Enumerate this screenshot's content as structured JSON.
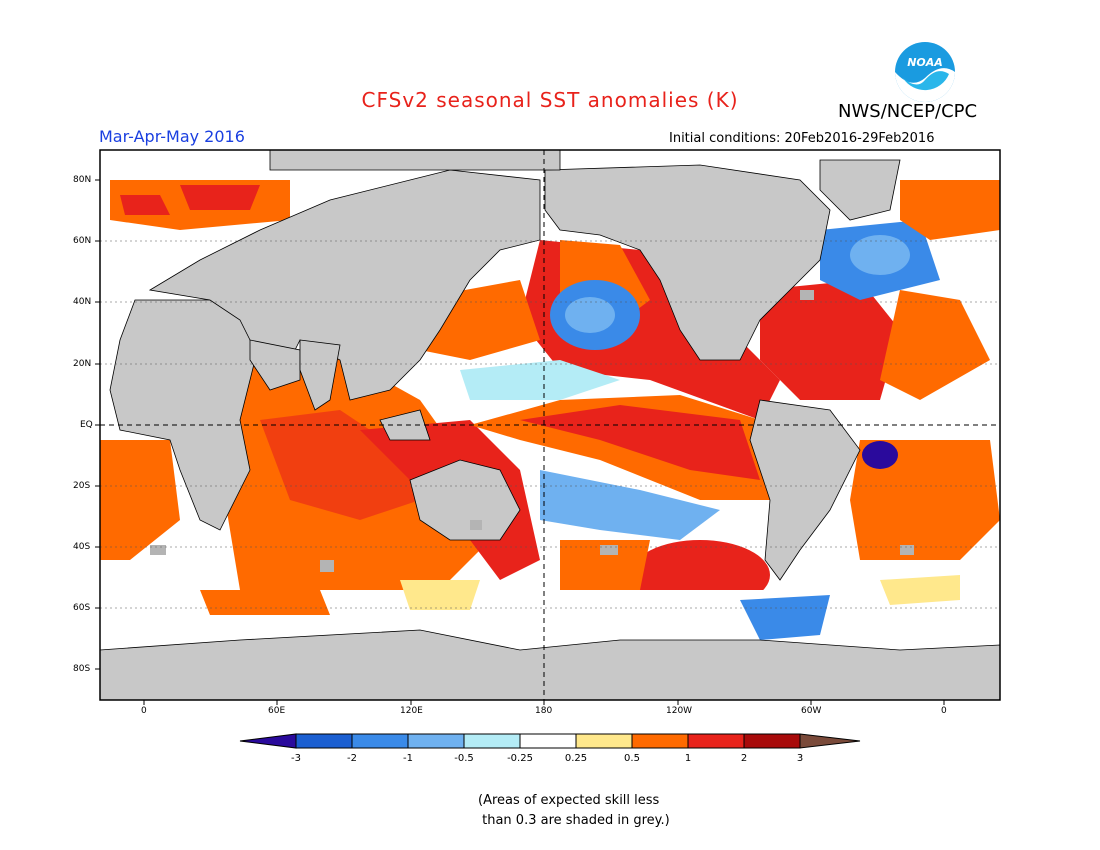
{
  "header": {
    "title": "CFSv2 seasonal SST anomalies (K)",
    "agency": "NWS/NCEP/CPC",
    "logo_text": "NOAA",
    "season": "Mar-Apr-May 2016",
    "initial_conditions": "Initial conditions: 20Feb2016-29Feb2016"
  },
  "map": {
    "lat_ticks": [
      "80N",
      "60N",
      "40N",
      "20N",
      "EQ",
      "20S",
      "40S",
      "60S",
      "80S"
    ],
    "lon_ticks": [
      "0",
      "60E",
      "120E",
      "180",
      "120W",
      "60W",
      "0"
    ],
    "land_color": "#c8c8c8",
    "ocean_neutral_color": "#ffffff"
  },
  "colorbar": {
    "labels": [
      "-3",
      "-2",
      "-1",
      "-0.5",
      "-0.25",
      "0.25",
      "0.5",
      "1",
      "2",
      "3"
    ],
    "colors": [
      "#2a0a9c",
      "#1b5fd1",
      "#3a8ae8",
      "#6fb1f0",
      "#b4ecf6",
      "#ffffff",
      "#ffe88c",
      "#ff6a00",
      "#e8231b",
      "#a80a0a",
      "#7a4a3a"
    ]
  },
  "note": {
    "line1": "(Areas of expected skill less",
    "line2": " than 0.3 are shaded in grey.)"
  }
}
